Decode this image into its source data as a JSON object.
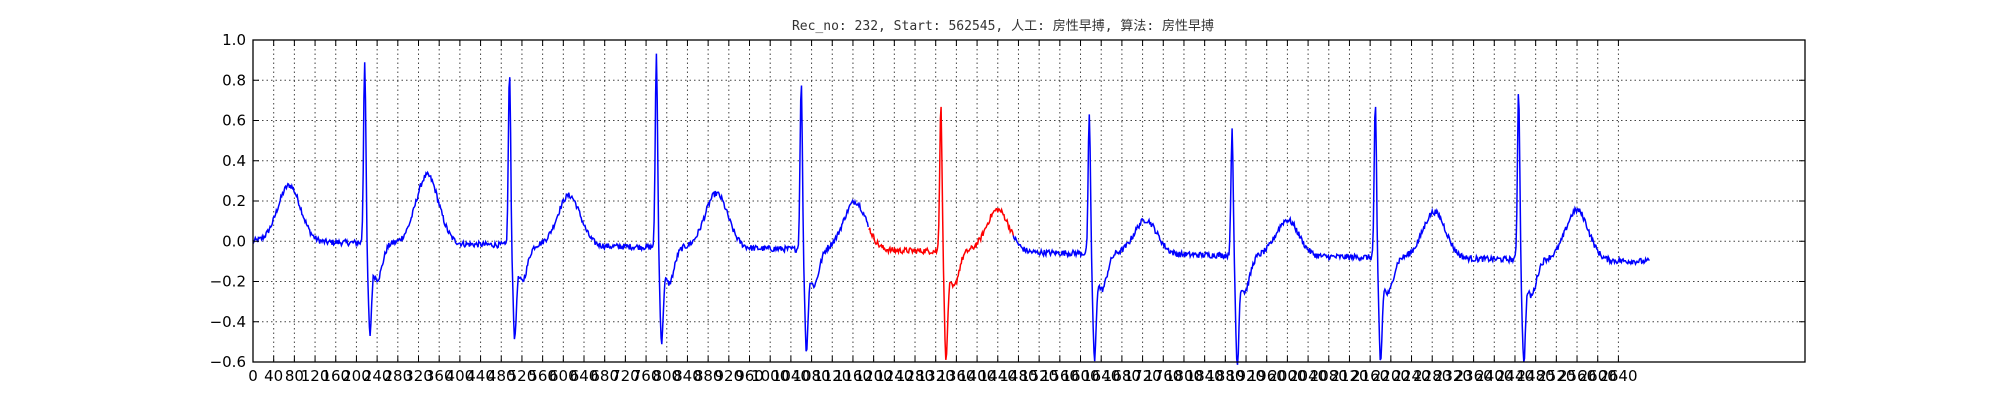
{
  "chart_data": {
    "type": "line",
    "title": "Rec_no: 232, Start: 562545, 人工: 房性早搏, 算法: 房性早搏",
    "xlabel": "",
    "ylabel": "",
    "xlim": [
      0,
      3000
    ],
    "ylim": [
      -0.6,
      1.0
    ],
    "grid": true,
    "grid_style": "dotted",
    "yticks": [
      1.0,
      0.8,
      0.6,
      0.4,
      0.2,
      0.0,
      -0.2,
      -0.4,
      -0.6
    ],
    "ytick_labels": [
      "1.0",
      "0.8",
      "0.6",
      "0.4",
      "0.2",
      "0.0",
      "−0.2",
      "−0.4",
      "−0.6"
    ],
    "xticks": [
      0,
      40,
      80,
      120,
      160,
      200,
      240,
      280,
      320,
      360,
      400,
      440,
      480,
      520,
      560,
      600,
      640,
      680,
      720,
      760,
      800,
      840,
      880,
      920,
      960,
      1000,
      1040,
      1080,
      1120,
      1160,
      1200,
      1240,
      1280,
      1320,
      1360,
      1400,
      1440,
      1480,
      1520,
      1560,
      1600,
      1640,
      1680,
      1720,
      1760,
      1800,
      1840,
      1880,
      1920,
      1960,
      2000,
      2040,
      2080,
      2120,
      2160,
      2200,
      2240,
      2280,
      2320,
      2360,
      2400,
      2440,
      2480,
      2520,
      2560,
      2600,
      2640
    ],
    "signal_x_end": 2700,
    "baseline_range": [
      0.0,
      -0.1
    ],
    "beats": [
      {
        "r_x": 216,
        "r_peak": 0.87,
        "s_trough": -0.37,
        "t_x": 70,
        "t_peak": 0.3,
        "color": "#0000ff"
      },
      {
        "r_x": 496,
        "r_peak": 0.82,
        "s_trough": -0.38,
        "t_x": 337,
        "t_peak": 0.36,
        "color": "#0000ff"
      },
      {
        "r_x": 780,
        "r_peak": 0.92,
        "s_trough": -0.39,
        "t_x": 611,
        "t_peak": 0.27,
        "color": "#0000ff"
      },
      {
        "r_x": 1060,
        "r_peak": 0.79,
        "s_trough": -0.42,
        "t_x": 896,
        "t_peak": 0.29,
        "color": "#0000ff"
      },
      {
        "r_x": 1330,
        "r_peak": 0.7,
        "s_trough": -0.45,
        "t_x": 1164,
        "t_peak": 0.26,
        "color": "#ff0000"
      },
      {
        "r_x": 1617,
        "r_peak": 0.64,
        "s_trough": -0.45,
        "t_x": 1440,
        "t_peak": 0.23,
        "color": "#0000ff"
      },
      {
        "r_x": 1893,
        "r_peak": 0.58,
        "s_trough": -0.46,
        "t_x": 1726,
        "t_peak": 0.19,
        "color": "#0000ff"
      },
      {
        "r_x": 2170,
        "r_peak": 0.72,
        "s_trough": -0.43,
        "t_x": 2000,
        "t_peak": 0.2,
        "color": "#0000ff"
      },
      {
        "r_x": 2447,
        "r_peak": 0.81,
        "s_trough": -0.43,
        "t_x": 2284,
        "t_peak": 0.25,
        "color": "#0000ff"
      },
      {
        "r_x": 2700,
        "r_peak": null,
        "s_trough": null,
        "t_x": 2560,
        "t_peak": 0.27,
        "color": "#0000ff"
      }
    ],
    "highlight": {
      "x_start": 1190,
      "x_end": 1470,
      "color": "#ff0000"
    },
    "series": [
      {
        "values": "ECG trace",
        "color": "#0000ff"
      },
      {
        "values": "highlighted segment",
        "color": "#ff0000"
      }
    ]
  }
}
